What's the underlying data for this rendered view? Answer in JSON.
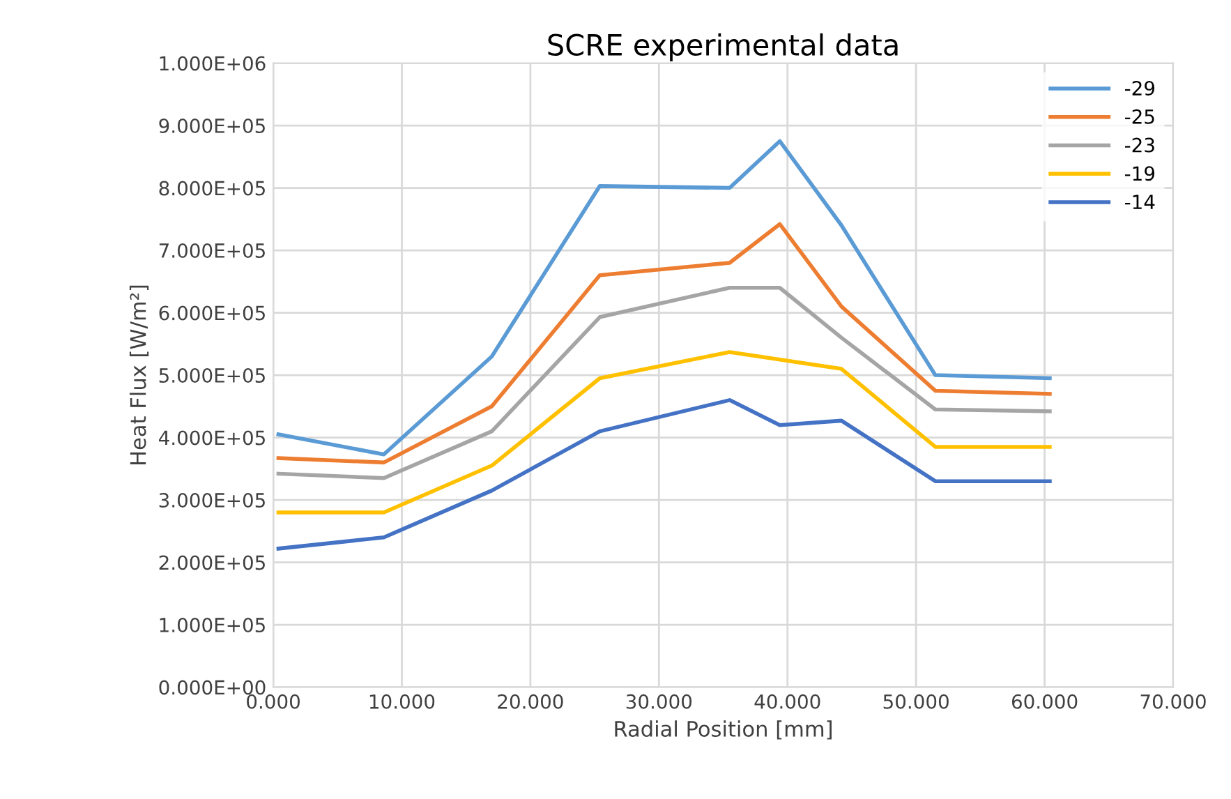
{
  "chart_data": {
    "type": "line",
    "title": "SCRE experimental data",
    "xlabel": "Radial Position [mm]",
    "ylabel": "Heat Flux [W/m²]",
    "x": [
      0.4,
      8.6,
      17,
      25.4,
      35.5,
      39.4,
      44.2,
      51.5,
      60.4
    ],
    "series": [
      {
        "name": "-29",
        "color": "#5b9bd5",
        "values": [
          405000,
          373000,
          530000,
          803000,
          800000,
          875000,
          740000,
          500000,
          495000
        ]
      },
      {
        "name": "-25",
        "color": "#ed7d31",
        "values": [
          367000,
          360000,
          450000,
          660000,
          680000,
          742000,
          610000,
          475000,
          470000
        ]
      },
      {
        "name": "-23",
        "color": "#a5a5a5",
        "values": [
          342000,
          335000,
          410000,
          593000,
          640000,
          640000,
          560000,
          445000,
          442000
        ]
      },
      {
        "name": "-19",
        "color": "#ffc000",
        "values": [
          280000,
          280000,
          355000,
          495000,
          537000,
          525000,
          510000,
          385000,
          385000
        ]
      },
      {
        "name": "-14",
        "color": "#4472c4",
        "values": [
          222000,
          240000,
          315000,
          410000,
          460000,
          420000,
          427000,
          330000,
          330000
        ]
      }
    ],
    "xlim": [
      0,
      70
    ],
    "xticks": [
      {
        "value": 0,
        "label": "0.000"
      },
      {
        "value": 10,
        "label": "10.000"
      },
      {
        "value": 20,
        "label": "20.000"
      },
      {
        "value": 30,
        "label": "30.000"
      },
      {
        "value": 40,
        "label": "40.000"
      },
      {
        "value": 50,
        "label": "50.000"
      },
      {
        "value": 60,
        "label": "60.000"
      },
      {
        "value": 70,
        "label": "70.000"
      }
    ],
    "ylim": [
      0,
      1000000
    ],
    "yticks": [
      {
        "value": 0,
        "label": "0.000E+00"
      },
      {
        "value": 100000,
        "label": "1.000E+05"
      },
      {
        "value": 200000,
        "label": "2.000E+05"
      },
      {
        "value": 300000,
        "label": "3.000E+05"
      },
      {
        "value": 400000,
        "label": "4.000E+05"
      },
      {
        "value": 500000,
        "label": "5.000E+05"
      },
      {
        "value": 600000,
        "label": "6.000E+05"
      },
      {
        "value": 700000,
        "label": "7.000E+05"
      },
      {
        "value": 800000,
        "label": "8.000E+05"
      },
      {
        "value": 900000,
        "label": "9.000E+05"
      },
      {
        "value": 1000000,
        "label": "1.000E+06"
      }
    ],
    "grid": true,
    "legend": "top right",
    "marker": "none",
    "line_style": "solid"
  }
}
